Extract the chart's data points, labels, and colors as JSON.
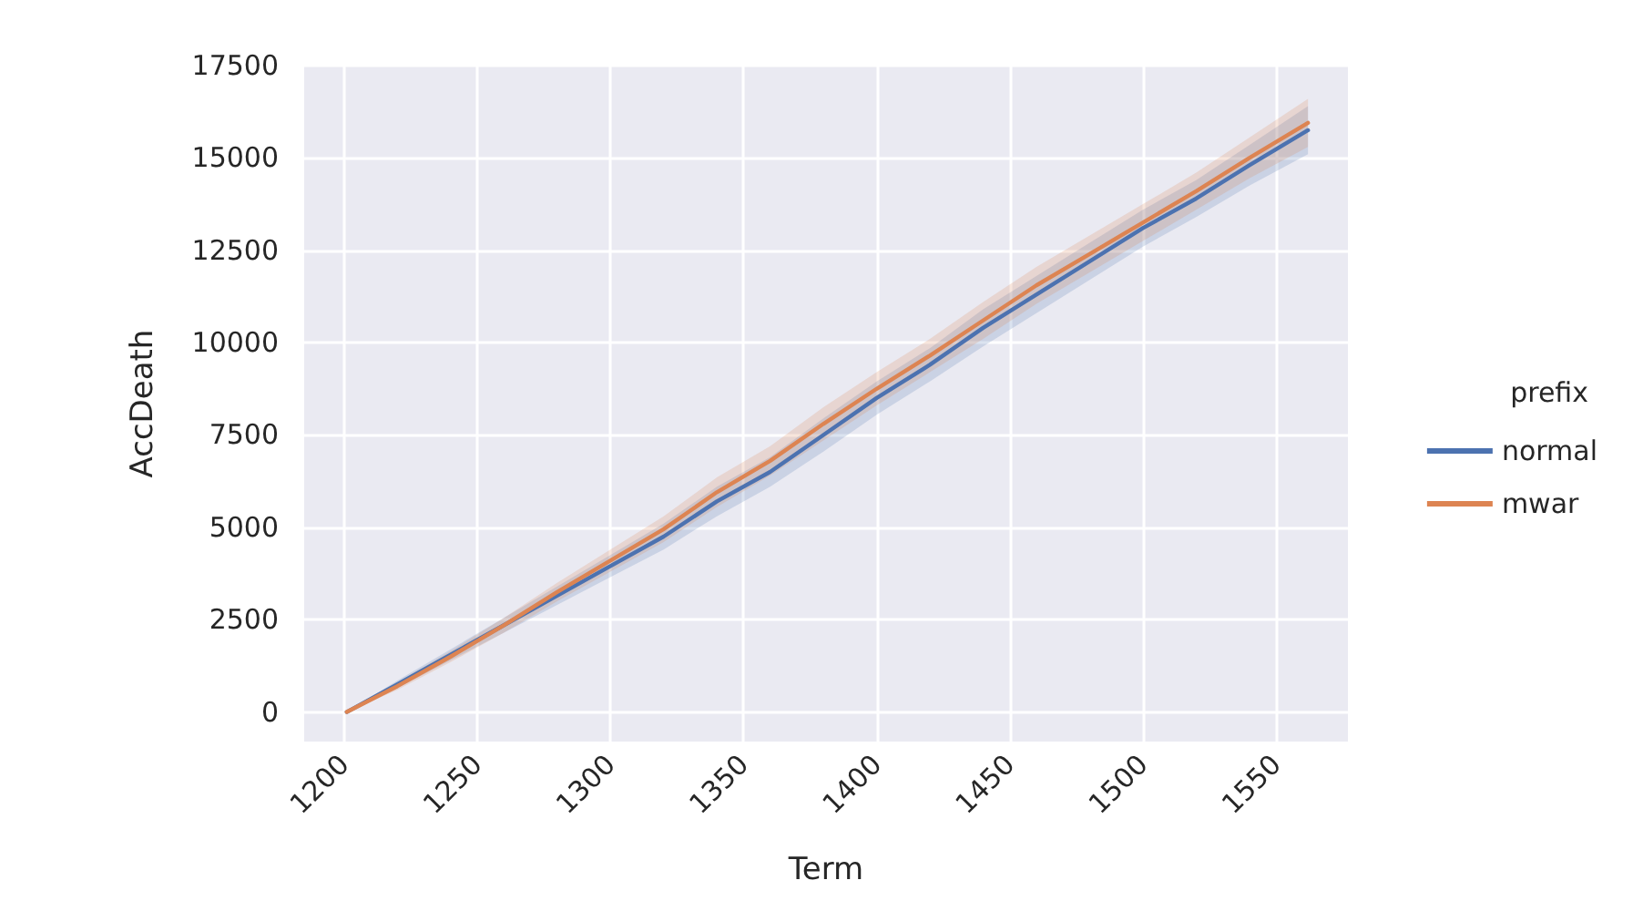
{
  "chart_data": {
    "type": "line",
    "xlabel": "Term",
    "ylabel": "AccDeath",
    "legend_title": "prefix",
    "legend": "right",
    "grid": true,
    "xlim": [
      1185,
      1577
    ],
    "xticks": [
      1200,
      1250,
      1300,
      1350,
      1400,
      1450,
      1500,
      1550
    ],
    "ylim": [
      -800,
      17500
    ],
    "yticks": [
      0,
      2500,
      5000,
      7500,
      10000,
      12500,
      15000,
      17500
    ],
    "x": [
      1201,
      1220,
      1240,
      1260,
      1280,
      1300,
      1320,
      1340,
      1360,
      1380,
      1400,
      1420,
      1440,
      1460,
      1480,
      1500,
      1520,
      1540,
      1562
    ],
    "series": [
      {
        "name": "normal",
        "color": "#4c72b0",
        "values": [
          0,
          750,
          1550,
          2350,
          3150,
          3950,
          4750,
          5700,
          6500,
          7500,
          8500,
          9400,
          10400,
          11300,
          12200,
          13100,
          13900,
          14800,
          15750
        ],
        "lower": [
          0,
          650,
          1400,
          2150,
          2900,
          3650,
          4400,
          5300,
          6100,
          7050,
          8050,
          8950,
          9900,
          10800,
          11700,
          12600,
          13400,
          14250,
          15100
        ],
        "upper": [
          0,
          850,
          1700,
          2550,
          3400,
          4250,
          5100,
          6100,
          6900,
          7950,
          8950,
          9850,
          10900,
          11800,
          12700,
          13600,
          14400,
          15350,
          16400
        ]
      },
      {
        "name": "mwar",
        "color": "#dd8452",
        "values": [
          0,
          700,
          1500,
          2350,
          3250,
          4100,
          4950,
          5950,
          6800,
          7800,
          8750,
          9650,
          10600,
          11550,
          12400,
          13250,
          14100,
          15000,
          15950
        ],
        "lower": [
          0,
          600,
          1350,
          2150,
          3000,
          3800,
          4600,
          5550,
          6400,
          7350,
          8300,
          9200,
          10100,
          11050,
          11900,
          12750,
          13600,
          14450,
          15300
        ],
        "upper": [
          0,
          800,
          1650,
          2550,
          3500,
          4400,
          5300,
          6350,
          7200,
          8250,
          9200,
          10100,
          11100,
          12050,
          12900,
          13750,
          14600,
          15550,
          16600
        ]
      }
    ]
  }
}
